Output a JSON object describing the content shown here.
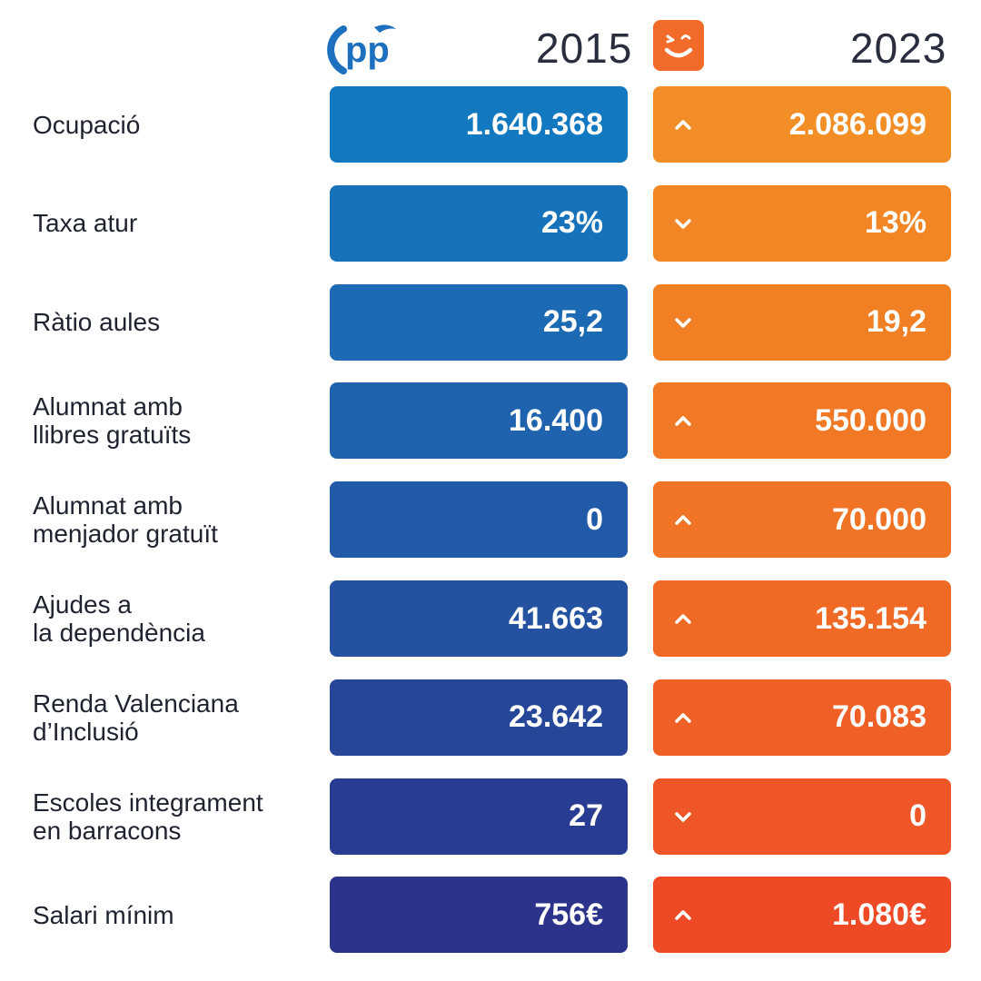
{
  "header": {
    "year_old": "2015",
    "year_new": "2023",
    "logo_old": "pp-party-logo",
    "logo_new": "smiley-party-logo"
  },
  "colors": {
    "blue_top": "#1278C0",
    "blue_bottom": "#2B348A",
    "orange_top": "#F28E25",
    "orange_bottom": "#EE4A26",
    "text": "#1F2330"
  },
  "rows": [
    {
      "label": "Ocupació",
      "old": "1.640.368",
      "new": "2.086.099",
      "trend": "up"
    },
    {
      "label": "Taxa atur",
      "old": "23%",
      "new": "13%",
      "trend": "down"
    },
    {
      "label": "Ràtio aules",
      "old": "25,2",
      "new": "19,2",
      "trend": "down"
    },
    {
      "label": "Alumnat amb\nllibres gratuïts",
      "old": "16.400",
      "new": "550.000",
      "trend": "up"
    },
    {
      "label": "Alumnat amb\nmenjador gratuït",
      "old": "0",
      "new": "70.000",
      "trend": "up"
    },
    {
      "label": "Ajudes a\nla dependència",
      "old": "41.663",
      "new": "135.154",
      "trend": "up"
    },
    {
      "label": "Renda Valenciana\nd’Inclusió",
      "old": "23.642",
      "new": "70.083",
      "trend": "up"
    },
    {
      "label": "Escoles integrament\nen barracons",
      "old": "27",
      "new": "0",
      "trend": "down"
    },
    {
      "label": "Salari mínim",
      "old": "756€",
      "new": "1.080€",
      "trend": "up"
    }
  ]
}
